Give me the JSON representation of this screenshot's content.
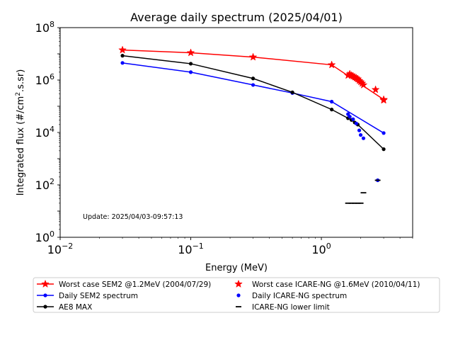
{
  "chart_data": {
    "type": "line",
    "title": "Average daily spectrum (2025/04/01)",
    "xlabel": "Energy (MeV)",
    "ylabel_main": "Integrated flux (#/cm",
    "ylabel_sup": "2",
    "ylabel_tail": ".s.sr)",
    "xscale": "log",
    "yscale": "log",
    "xlim": [
      0.01,
      5
    ],
    "ylim": [
      1,
      100000000
    ],
    "xticks": [
      {
        "value": 0.01,
        "base": "10",
        "exp": "−2"
      },
      {
        "value": 0.1,
        "base": "10",
        "exp": "−1"
      },
      {
        "value": 1,
        "base": "10",
        "exp": "0"
      }
    ],
    "yticks": [
      {
        "value": 1,
        "base": "10",
        "exp": "0"
      },
      {
        "value": 100,
        "base": "10",
        "exp": "2"
      },
      {
        "value": 10000,
        "base": "10",
        "exp": "4"
      },
      {
        "value": 1000000,
        "base": "10",
        "exp": "6"
      },
      {
        "value": 100000000,
        "base": "10",
        "exp": "8"
      }
    ],
    "annotation": "Update: 2025/04/03-09:57:13",
    "grid": false,
    "legend_position": "below",
    "series": [
      {
        "name": "Worst case SEM2 @1.2MeV (2004/07/29)",
        "color": "#ff0000",
        "style": "line",
        "marker": "star",
        "x": [
          0.03,
          0.1,
          0.3,
          1.2,
          3.0
        ],
        "y": [
          14000000,
          11000000,
          7500000,
          3800000,
          180000
        ]
      },
      {
        "name": "Daily SEM2 spectrum",
        "color": "#0000ff",
        "style": "line",
        "marker": "dot",
        "x": [
          0.03,
          0.1,
          0.3,
          0.6,
          1.2,
          3.0
        ],
        "y": [
          4500000,
          2000000,
          650000,
          320000,
          150000,
          9500
        ]
      },
      {
        "name": "AE8 MAX",
        "color": "#000000",
        "style": "line",
        "marker": "dot",
        "x": [
          0.03,
          0.1,
          0.3,
          0.6,
          1.2,
          1.6,
          1.7,
          1.8,
          1.9,
          3.0
        ],
        "y": [
          8500000,
          4200000,
          1150000,
          340000,
          75000,
          35000,
          30000,
          24000,
          20000,
          2300
        ]
      },
      {
        "name": "Worst case ICARE-NG @1.6MeV (2010/04/11)",
        "color": "#ff0000",
        "style": "scatter",
        "marker": "star",
        "x": [
          1.6,
          1.65,
          1.7,
          1.75,
          1.8,
          1.85,
          1.9,
          1.95,
          2.0,
          2.05,
          2.1,
          2.6,
          3.0
        ],
        "y": [
          1500000,
          1700000,
          1500000,
          1400000,
          1300000,
          1200000,
          1100000,
          950000,
          850000,
          750000,
          650000,
          430000,
          170000
        ]
      },
      {
        "name": "Daily ICARE-NG spectrum",
        "color": "#0000ff",
        "style": "scatter",
        "marker": "dot",
        "x": [
          1.6,
          1.65,
          1.75,
          1.85,
          1.95,
          2.0,
          2.1,
          2.7
        ],
        "y": [
          50000,
          40000,
          32000,
          22000,
          12000,
          8000,
          6000,
          150
        ]
      },
      {
        "name": "ICARE-NG lower limit",
        "color": "#000000",
        "style": "scatter",
        "marker": "hline",
        "x": [
          1.6,
          1.7,
          1.8,
          1.9,
          2.0,
          2.1,
          2.7
        ],
        "y": [
          20,
          20,
          20,
          20,
          20,
          50,
          150
        ]
      }
    ]
  }
}
